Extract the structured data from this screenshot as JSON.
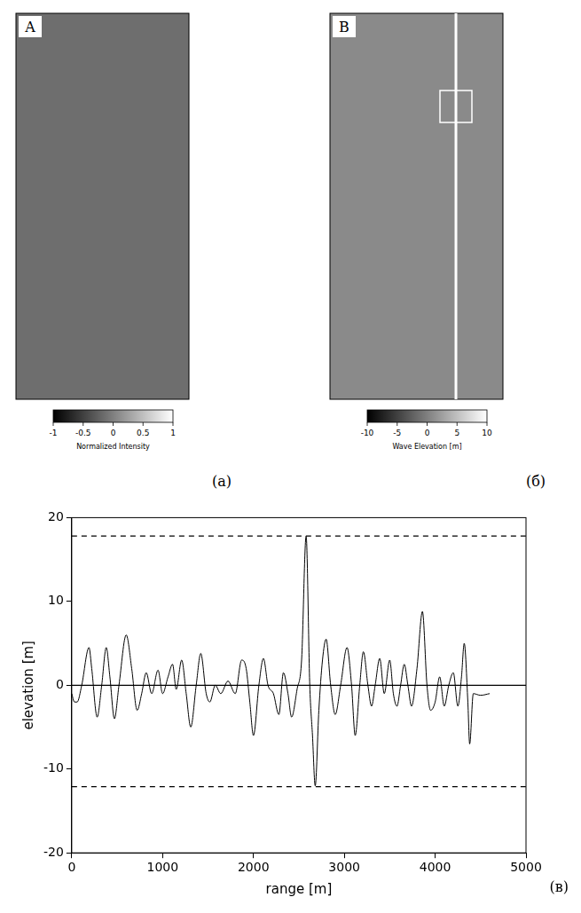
{
  "panels": [
    {
      "letter": "A",
      "caption": "(а)",
      "colorbar": {
        "label": "Normalized Intensity",
        "range": [
          -1,
          1
        ],
        "ticks": [
          -1,
          -0.5,
          0,
          0.5,
          1
        ]
      }
    },
    {
      "letter": "B",
      "caption": "(б)",
      "colorbar": {
        "label": "Wave Elevation [m]",
        "range": [
          -10,
          10
        ],
        "ticks": [
          -10,
          -5,
          0,
          5,
          10
        ]
      }
    }
  ],
  "chart_data": {
    "type": "line",
    "caption": "(в)",
    "x_label": "range [m]",
    "y_label": "elevation [m]",
    "xlim": [
      0,
      5000
    ],
    "xticks": [
      0,
      1000,
      2000,
      3000,
      4000,
      5000
    ],
    "ylim": [
      -20,
      20
    ],
    "yticks": [
      -20,
      -10,
      0,
      10,
      20
    ],
    "grid": false,
    "color": "#000000",
    "line_style": "solid",
    "x": [
      0,
      30,
      60,
      110,
      190,
      220,
      280,
      330,
      380,
      420,
      470,
      520,
      600,
      660,
      720,
      770,
      820,
      880,
      950,
      1000,
      1060,
      1110,
      1150,
      1210,
      1260,
      1310,
      1370,
      1420,
      1480,
      1520,
      1580,
      1640,
      1720,
      1800,
      1870,
      1920,
      1960,
      2000,
      2060,
      2110,
      2160,
      2220,
      2280,
      2330,
      2380,
      2420,
      2480,
      2530,
      2580,
      2620,
      2650,
      2680,
      2720,
      2760,
      2800,
      2850,
      2900,
      2960,
      3030,
      3080,
      3120,
      3170,
      3210,
      3260,
      3300,
      3340,
      3390,
      3440,
      3500,
      3540,
      3580,
      3620,
      3660,
      3700,
      3740,
      3800,
      3860,
      3910,
      3950,
      4000,
      4050,
      4100,
      4150,
      4200,
      4250,
      4290,
      4320,
      4360,
      4380,
      4420,
      4500,
      4600
    ],
    "values": [
      -1,
      -2,
      -2,
      0,
      4.5,
      2,
      -3.8,
      0,
      4.5,
      1,
      -4,
      0,
      6,
      2,
      -3,
      -1,
      1.5,
      -1,
      1.8,
      -1,
      1,
      2.5,
      -0.5,
      3,
      -1,
      -5,
      0,
      3.8,
      -1,
      -2,
      0,
      -1,
      0.5,
      -1,
      3,
      2,
      -2,
      -6,
      0,
      3.2,
      0,
      -1,
      -3.5,
      1.5,
      -1,
      -3.8,
      -0.5,
      3,
      17.8,
      0,
      -6,
      -12,
      -3,
      3,
      5.5,
      0,
      -3.5,
      0,
      4.5,
      0,
      -6,
      0,
      4,
      0,
      -2.5,
      0,
      3.2,
      -1,
      3,
      -1,
      -2.5,
      0,
      2.5,
      0,
      -2.5,
      2,
      8.8,
      0,
      -3,
      -2,
      1,
      -2.5,
      0,
      1.5,
      -2.5,
      1,
      5,
      -2,
      -7,
      -1,
      -1.2,
      -1
    ],
    "hlines": [
      {
        "y": 17.8,
        "line_style": "dashed"
      },
      {
        "y": -12.1,
        "line_style": "dashed"
      },
      {
        "y": 0,
        "line_style": "solid"
      }
    ]
  }
}
